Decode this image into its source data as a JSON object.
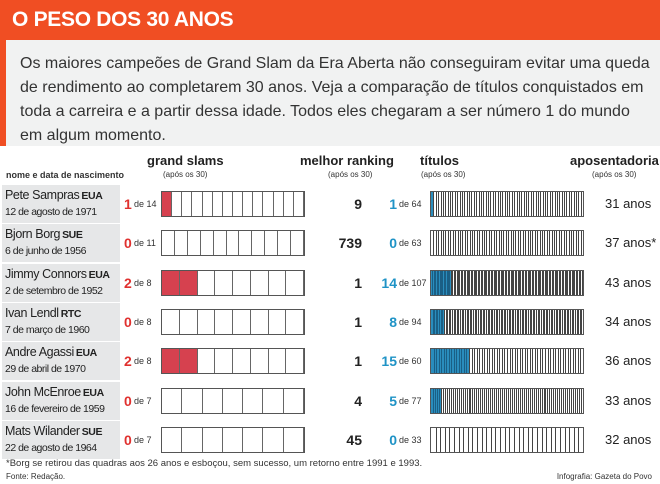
{
  "title": "O PESO DOS 30 ANOS",
  "intro": "Os maiores campeões de Grand Slam da Era Aberta não conseguiram evitar uma queda de rendimento ao completarem 30 anos. Veja a comparação de títulos conquistados em toda a carreira e a partir dessa idade. Todos eles chegaram a ser número 1 do mundo em algum momento.",
  "headers": {
    "name": "nome e data de nascimento",
    "grand_slams": "grand slams",
    "grand_slams_sub": "(após os 30)",
    "ranking": "melhor ranking",
    "ranking_sub": "(após os 30)",
    "titles": "títulos",
    "titles_sub": "(após os 30)",
    "retirement": "aposentadoria",
    "retirement_sub": "(após os 30)"
  },
  "colors": {
    "accent": "#f04e23",
    "grand_slam_fill": "#d6414f",
    "titles_fill": "#2a8dbd",
    "title_after_text": "#1f93c6"
  },
  "chart_data": {
    "type": "table",
    "columns": [
      "nome e data de nascimento",
      "grand slams (após os 30)",
      "melhor ranking (após os 30)",
      "títulos (após os 30)",
      "aposentadoria"
    ],
    "players": [
      {
        "name": "Pete Sampras",
        "country": "EUA",
        "birth": "12 de agosto de 1971",
        "gs_after30": 1,
        "gs_total": 14,
        "gs_of_text": "de 14",
        "best_ranking_after30": 9,
        "titles_after30": 1,
        "titles_total": 64,
        "titles_of_text": "de 64",
        "retirement": "31 anos"
      },
      {
        "name": "Bjorn Borg",
        "country": "SUE",
        "birth": "6 de junho de 1956",
        "gs_after30": 0,
        "gs_total": 11,
        "gs_of_text": "de 11",
        "best_ranking_after30": 739,
        "titles_after30": 0,
        "titles_total": 63,
        "titles_of_text": "de 63",
        "retirement": "37 anos*"
      },
      {
        "name": "Jimmy Connors",
        "country": "EUA",
        "birth": "2 de setembro de 1952",
        "gs_after30": 2,
        "gs_total": 8,
        "gs_of_text": "de 8",
        "best_ranking_after30": 1,
        "titles_after30": 14,
        "titles_total": 107,
        "titles_of_text": "de 107",
        "retirement": "43 anos"
      },
      {
        "name": "Ivan Lendl",
        "country": "RTC",
        "birth": "7 de março de 1960",
        "gs_after30": 0,
        "gs_total": 8,
        "gs_of_text": "de 8",
        "best_ranking_after30": 1,
        "titles_after30": 8,
        "titles_total": 94,
        "titles_of_text": "de 94",
        "retirement": "34 anos"
      },
      {
        "name": "Andre Agassi",
        "country": "EUA",
        "birth": "29 de abril de 1970",
        "gs_after30": 2,
        "gs_total": 8,
        "gs_of_text": "de 8",
        "best_ranking_after30": 1,
        "titles_after30": 15,
        "titles_total": 60,
        "titles_of_text": "de 60",
        "retirement": "36 anos"
      },
      {
        "name": "John McEnroe",
        "country": "EUA",
        "birth": "16 de fevereiro de 1959",
        "gs_after30": 0,
        "gs_total": 7,
        "gs_of_text": "de 7",
        "best_ranking_after30": 4,
        "titles_after30": 5,
        "titles_total": 77,
        "titles_of_text": "de 77",
        "retirement": "33 anos"
      },
      {
        "name": "Mats Wilander",
        "country": "SUE",
        "birth": "22 de agosto de 1964",
        "gs_after30": 0,
        "gs_total": 7,
        "gs_of_text": "de 7",
        "best_ranking_after30": 45,
        "titles_after30": 0,
        "titles_total": 33,
        "titles_of_text": "de 33",
        "retirement": "32 anos"
      }
    ]
  },
  "footnote": "*Borg se retirou das quadras aos 26 anos e esboçou, sem sucesso, um retorno entre 1991 e 1993.",
  "source": "Fonte: Redação.",
  "credit": "Infografia: Gazeta do Povo"
}
